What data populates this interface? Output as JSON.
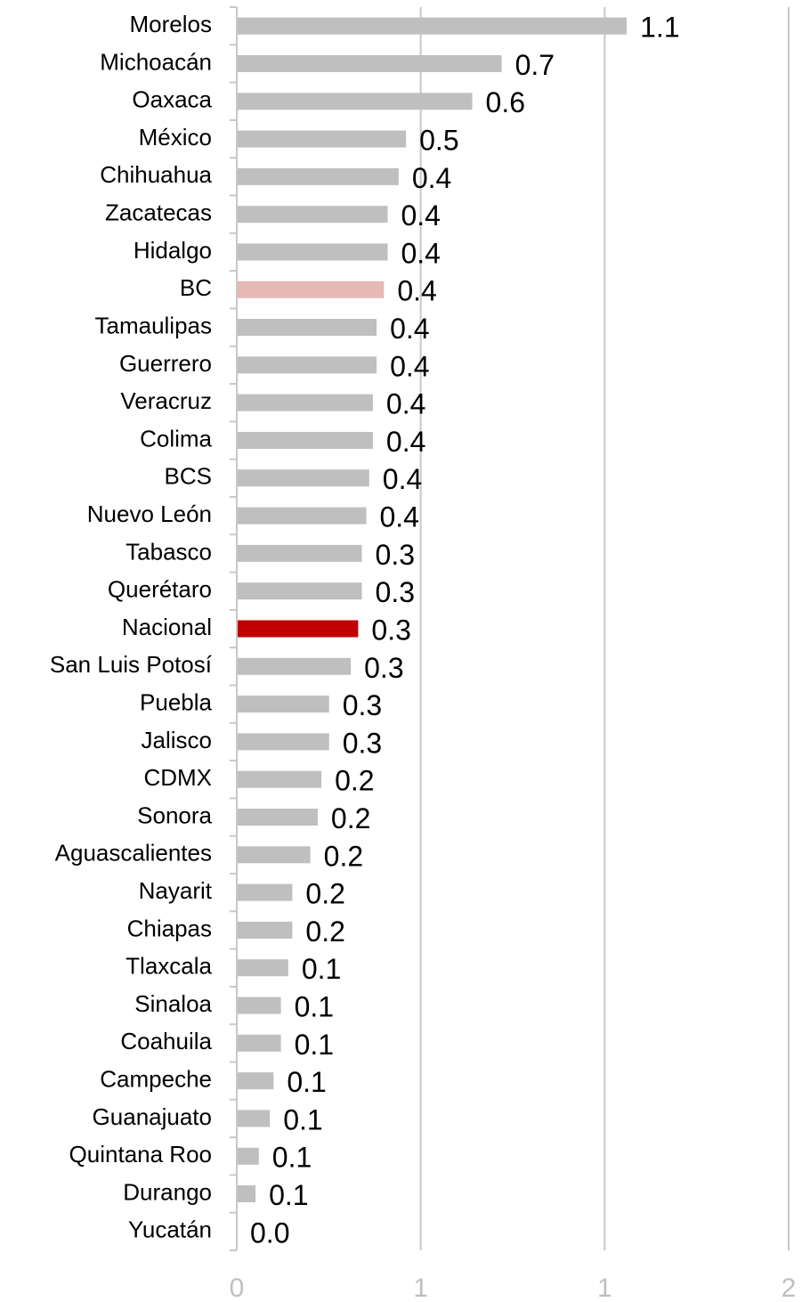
{
  "chart_data": {
    "type": "bar",
    "orientation": "horizontal",
    "categories": [
      "Morelos",
      "Michoacán",
      "Oaxaca",
      "México",
      "Chihuahua",
      "Zacatecas",
      "Hidalgo",
      "BC",
      "Tamaulipas",
      "Guerrero",
      "Veracruz",
      "Colima",
      "BCS",
      "Nuevo León",
      "Tabasco",
      "Querétaro",
      "Nacional",
      "San Luis Potosí",
      "Puebla",
      "Jalisco",
      "CDMX",
      "Sonora",
      "Aguascalientes",
      "Nayarit",
      "Chiapas",
      "Tlaxcala",
      "Sinaloa",
      "Coahuila",
      "Campeche",
      "Guanajuato",
      "Quintana Roo",
      "Durango",
      "Yucatán"
    ],
    "values": [
      1.06,
      0.72,
      0.64,
      0.46,
      0.44,
      0.41,
      0.41,
      0.4,
      0.38,
      0.38,
      0.37,
      0.37,
      0.36,
      0.352,
      0.34,
      0.34,
      0.33,
      0.31,
      0.251,
      0.251,
      0.23,
      0.22,
      0.2,
      0.151,
      0.151,
      0.14,
      0.12,
      0.12,
      0.1,
      0.09,
      0.06,
      0.051,
      0
    ],
    "value_labels": [
      "1.1",
      "0.7",
      "0.6",
      "0.5",
      "0.4",
      "0.4",
      "0.4",
      "0.4",
      "0.4",
      "0.4",
      "0.4",
      "0.4",
      "0.4",
      "0.4",
      "0.3",
      "0.3",
      "0.3",
      "0.3",
      "0.3",
      "0.3",
      "0.2",
      "0.2",
      "0.2",
      "0.2",
      "0.2",
      "0.1",
      "0.1",
      "0.1",
      "0.1",
      "0.1",
      "0.1",
      "0.1",
      "0.0"
    ],
    "colors": [
      "#bfbfbf",
      "#bfbfbf",
      "#bfbfbf",
      "#bfbfbf",
      "#bfbfbf",
      "#bfbfbf",
      "#bfbfbf",
      "#e6b8b7",
      "#bfbfbf",
      "#bfbfbf",
      "#bfbfbf",
      "#bfbfbf",
      "#bfbfbf",
      "#bfbfbf",
      "#bfbfbf",
      "#bfbfbf",
      "#c00000",
      "#bfbfbf",
      "#bfbfbf",
      "#bfbfbf",
      "#bfbfbf",
      "#bfbfbf",
      "#bfbfbf",
      "#bfbfbf",
      "#bfbfbf",
      "#bfbfbf",
      "#bfbfbf",
      "#bfbfbf",
      "#bfbfbf",
      "#bfbfbf",
      "#bfbfbf",
      "#bfbfbf",
      "#bfbfbf"
    ],
    "xlim": [
      0,
      1.5
    ],
    "xticks": [
      0,
      {
        "value": 0.5,
        "label": "1"
      },
      {
        "value": 1,
        "label": "1"
      },
      {
        "value": 1.5,
        "label": "2"
      }
    ],
    "grid": true
  }
}
